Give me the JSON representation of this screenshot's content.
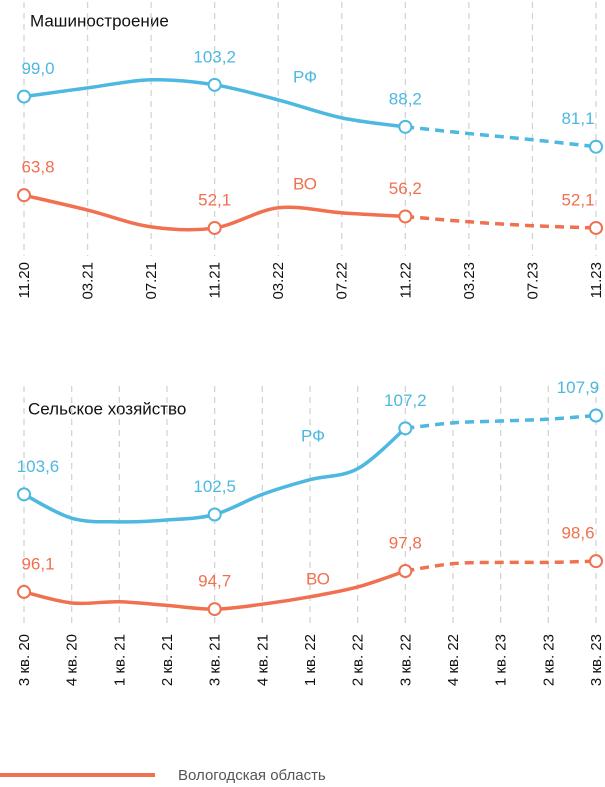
{
  "chart_data": [
    {
      "type": "line",
      "title": "Машиностроение",
      "categories": [
        "11.20",
        "03.21",
        "07.21",
        "11.21",
        "03.22",
        "07.22",
        "11.22",
        "03.23",
        "07.23",
        "11.23"
      ],
      "forecast_from": 6,
      "ylim": [
        47.8,
        119.2
      ],
      "grid": true,
      "series": [
        {
          "name": "РФ",
          "color": "#4db8e0",
          "values": [
            99.0,
            102.1,
            105.0,
            103.2,
            97.8,
            91.4,
            88.2,
            85.8,
            83.6,
            81.1
          ],
          "value_labels": [
            "99,0",
            null,
            null,
            "103,2",
            null,
            null,
            "88,2",
            null,
            null,
            "81,1"
          ]
        },
        {
          "name": "ВО",
          "color": "#f07050",
          "values": [
            63.8,
            58.5,
            52.5,
            52.1,
            59.3,
            57.5,
            56.2,
            54.3,
            52.9,
            52.1
          ],
          "value_labels": [
            "63,8",
            null,
            null,
            "52,1",
            null,
            null,
            "56,2",
            null,
            null,
            "52,1"
          ]
        }
      ]
    },
    {
      "type": "line",
      "title": "Сельское хозяйство",
      "categories": [
        "3 кв. 20",
        "4 кв. 20",
        "1 кв. 21",
        "2 кв. 21",
        "3 кв. 21",
        "4 кв. 21",
        "1 кв. 22",
        "2 кв. 22",
        "3 кв. 22",
        "4 кв. 22",
        "1 кв. 23",
        "2 кв. 23",
        "3 кв. 23"
      ],
      "forecast_from": 8,
      "ylim": [
        93.0,
        110.9
      ],
      "y2lim": [
        96.2,
        108.2
      ],
      "grid": true,
      "series": [
        {
          "name": "РФ",
          "color": "#4db8e0",
          "axis": "y2",
          "values": [
            103.6,
            102.3,
            102.1,
            102.2,
            102.5,
            103.6,
            104.4,
            105.0,
            107.2,
            107.5,
            107.6,
            107.7,
            107.9
          ],
          "value_labels": [
            "103,6",
            null,
            null,
            null,
            "102,5",
            null,
            null,
            null,
            "107,2",
            null,
            null,
            null,
            "107,9"
          ]
        },
        {
          "name": "ВО",
          "color": "#f07050",
          "values": [
            96.1,
            95.2,
            95.3,
            95.0,
            94.7,
            95.1,
            95.7,
            96.5,
            97.8,
            98.4,
            98.5,
            98.5,
            98.6
          ],
          "value_labels": [
            "96,1",
            null,
            null,
            null,
            "94,7",
            null,
            null,
            null,
            "97,8",
            null,
            null,
            null,
            "98,6"
          ]
        }
      ]
    }
  ],
  "legend": {
    "label": "Вологодская область",
    "color": "#f07050"
  }
}
